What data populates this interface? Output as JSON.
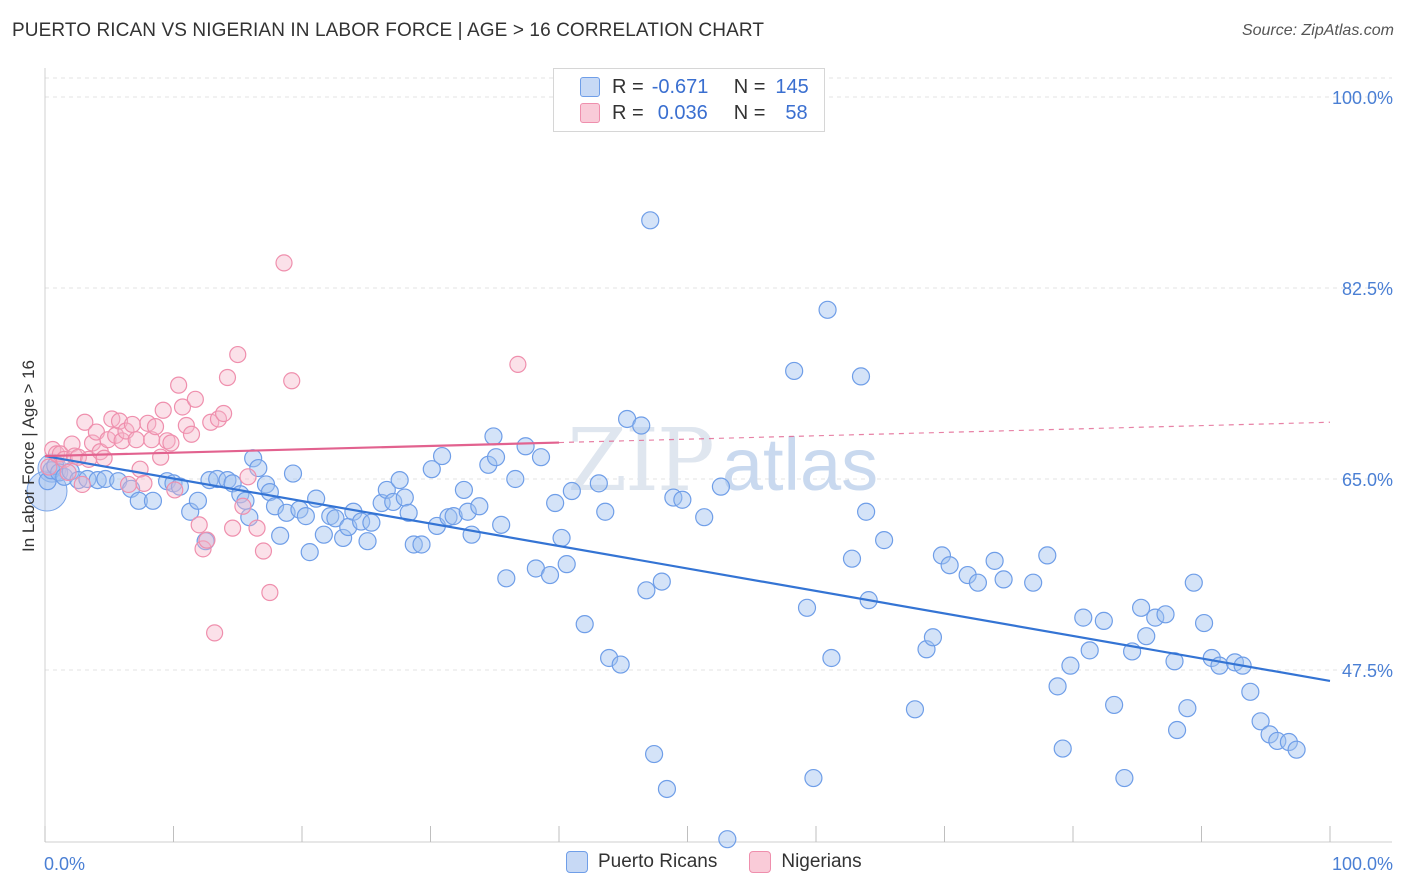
{
  "header": {
    "title": "PUERTO RICAN VS NIGERIAN IN LABOR FORCE | AGE > 16 CORRELATION CHART",
    "source": "Source: ZipAtlas.com"
  },
  "legend": {
    "rows": [
      {
        "r_label": "R =",
        "r_value": "-0.671",
        "n_label": "N =",
        "n_value": "145"
      },
      {
        "r_label": "R =",
        "r_value": "0.036",
        "n_label": "N =",
        "n_value": "58"
      }
    ]
  },
  "bottom_legend": {
    "items": [
      {
        "label": "Puerto Ricans"
      },
      {
        "label": "Nigerians"
      }
    ]
  },
  "watermark": {
    "zip": "ZIP",
    "atlas": "atlas"
  },
  "chart_data": {
    "type": "scatter",
    "title": "PUERTO RICAN VS NIGERIAN IN LABOR FORCE | AGE > 16 CORRELATION CHART",
    "ylabel": "In Labor Force | Age > 16",
    "xlabel": "",
    "x_tick_labels": [
      "0.0%",
      "100.0%"
    ],
    "y_tick_labels": [
      "100.0%",
      "82.5%",
      "65.0%",
      "47.5%"
    ],
    "y_ticks": [
      100.0,
      82.5,
      65.0,
      47.5
    ],
    "xlim": [
      0,
      100
    ],
    "ylim": [
      30,
      102
    ],
    "grid": true,
    "legend_position": "top-center",
    "colors": {
      "puerto_ricans": "#6f9ee8",
      "nigerians": "#ef8fad",
      "pr_line": "#3474d4",
      "ng_line": "#e2628f"
    },
    "series": [
      {
        "name": "Puerto Ricans",
        "r": -0.671,
        "n": 145,
        "trend": {
          "x": [
            0,
            100
          ],
          "y": [
            67.1,
            46.5
          ]
        },
        "points": [
          [
            0.2,
            64.8
          ],
          [
            0.5,
            65.8
          ],
          [
            0.8,
            66.2
          ],
          [
            1.1,
            65.6
          ],
          [
            1.5,
            65.2
          ],
          [
            2.0,
            65.7
          ],
          [
            2.6,
            64.9
          ],
          [
            3.3,
            65.0
          ],
          [
            4.1,
            64.9
          ],
          [
            4.7,
            65.0
          ],
          [
            5.7,
            64.8
          ],
          [
            6.7,
            64.1
          ],
          [
            7.3,
            63.0
          ],
          [
            8.4,
            63.0
          ],
          [
            9.5,
            64.8
          ],
          [
            10.0,
            64.6
          ],
          [
            10.5,
            64.3
          ],
          [
            11.3,
            62.0
          ],
          [
            11.9,
            63.0
          ],
          [
            12.5,
            59.3
          ],
          [
            12.8,
            64.9
          ],
          [
            13.4,
            65.0
          ],
          [
            14.2,
            64.9
          ],
          [
            14.6,
            64.6
          ],
          [
            15.2,
            63.6
          ],
          [
            15.6,
            63.0
          ],
          [
            15.9,
            61.5
          ],
          [
            16.2,
            66.9
          ],
          [
            16.6,
            66.0
          ],
          [
            17.2,
            64.5
          ],
          [
            17.5,
            63.8
          ],
          [
            17.9,
            62.5
          ],
          [
            18.3,
            59.8
          ],
          [
            18.8,
            61.9
          ],
          [
            19.3,
            65.5
          ],
          [
            19.8,
            62.2
          ],
          [
            20.3,
            61.6
          ],
          [
            20.6,
            58.3
          ],
          [
            21.1,
            63.2
          ],
          [
            21.7,
            59.9
          ],
          [
            22.2,
            61.6
          ],
          [
            22.6,
            61.4
          ],
          [
            23.2,
            59.6
          ],
          [
            23.6,
            60.6
          ],
          [
            24.0,
            62.0
          ],
          [
            24.6,
            61.1
          ],
          [
            25.1,
            59.3
          ],
          [
            25.4,
            61.0
          ],
          [
            26.2,
            62.8
          ],
          [
            26.6,
            64.0
          ],
          [
            27.1,
            62.9
          ],
          [
            27.6,
            64.9
          ],
          [
            28.0,
            63.3
          ],
          [
            28.3,
            61.9
          ],
          [
            28.7,
            59.0
          ],
          [
            29.3,
            59.0
          ],
          [
            30.1,
            65.9
          ],
          [
            30.5,
            60.7
          ],
          [
            30.9,
            67.1
          ],
          [
            31.4,
            61.5
          ],
          [
            31.8,
            61.6
          ],
          [
            32.6,
            64.0
          ],
          [
            32.9,
            62.0
          ],
          [
            33.2,
            59.9
          ],
          [
            33.8,
            62.5
          ],
          [
            34.5,
            66.3
          ],
          [
            34.9,
            68.9
          ],
          [
            35.1,
            67.0
          ],
          [
            35.5,
            60.8
          ],
          [
            35.9,
            55.9
          ],
          [
            36.6,
            65.0
          ],
          [
            37.4,
            68.0
          ],
          [
            38.2,
            56.8
          ],
          [
            38.6,
            67.0
          ],
          [
            39.3,
            56.2
          ],
          [
            39.7,
            62.8
          ],
          [
            40.2,
            59.6
          ],
          [
            40.6,
            57.2
          ],
          [
            41.0,
            63.9
          ],
          [
            42.0,
            51.7
          ],
          [
            43.1,
            64.6
          ],
          [
            43.6,
            62.0
          ],
          [
            43.9,
            48.6
          ],
          [
            44.8,
            48.0
          ],
          [
            45.3,
            70.5
          ],
          [
            46.4,
            69.9
          ],
          [
            46.8,
            54.8
          ],
          [
            47.1,
            88.7
          ],
          [
            47.4,
            39.8
          ],
          [
            48.0,
            55.6
          ],
          [
            48.4,
            36.6
          ],
          [
            48.9,
            63.3
          ],
          [
            49.6,
            63.1
          ],
          [
            51.3,
            61.5
          ],
          [
            52.6,
            64.3
          ],
          [
            53.1,
            32.0
          ],
          [
            58.3,
            74.9
          ],
          [
            59.3,
            53.2
          ],
          [
            59.8,
            37.6
          ],
          [
            60.9,
            80.5
          ],
          [
            61.2,
            48.6
          ],
          [
            62.8,
            57.7
          ],
          [
            63.5,
            74.4
          ],
          [
            63.9,
            62.0
          ],
          [
            64.1,
            53.9
          ],
          [
            65.3,
            59.4
          ],
          [
            67.7,
            43.9
          ],
          [
            68.6,
            49.4
          ],
          [
            69.1,
            50.5
          ],
          [
            69.8,
            58.0
          ],
          [
            70.4,
            57.1
          ],
          [
            71.8,
            56.2
          ],
          [
            72.6,
            55.5
          ],
          [
            73.9,
            57.5
          ],
          [
            74.6,
            55.8
          ],
          [
            76.9,
            55.5
          ],
          [
            78.0,
            58.0
          ],
          [
            78.8,
            46.0
          ],
          [
            79.2,
            40.3
          ],
          [
            79.8,
            47.9
          ],
          [
            80.8,
            52.3
          ],
          [
            81.3,
            49.3
          ],
          [
            82.4,
            52.0
          ],
          [
            83.2,
            44.3
          ],
          [
            84.0,
            37.6
          ],
          [
            84.6,
            49.2
          ],
          [
            85.3,
            53.2
          ],
          [
            85.7,
            50.6
          ],
          [
            86.4,
            52.3
          ],
          [
            87.2,
            52.6
          ],
          [
            87.9,
            48.3
          ],
          [
            88.1,
            42.0
          ],
          [
            88.9,
            44.0
          ],
          [
            89.4,
            55.5
          ],
          [
            90.2,
            51.8
          ],
          [
            90.8,
            48.6
          ],
          [
            91.4,
            47.9
          ],
          [
            92.6,
            48.2
          ],
          [
            93.2,
            47.9
          ],
          [
            93.8,
            45.5
          ],
          [
            94.6,
            42.8
          ],
          [
            95.3,
            41.6
          ],
          [
            95.9,
            41.0
          ],
          [
            96.8,
            40.9
          ],
          [
            97.4,
            40.2
          ]
        ]
      },
      {
        "name": "Nigerians",
        "r": 0.036,
        "n": 58,
        "trend": {
          "x": [
            0,
            100
          ],
          "y": [
            67.1,
            70.2
          ]
        },
        "trend_solid_until_x": 40,
        "points": [
          [
            0.3,
            66.1
          ],
          [
            0.6,
            67.7
          ],
          [
            0.9,
            67.3
          ],
          [
            1.2,
            67.3
          ],
          [
            1.5,
            66.8
          ],
          [
            1.8,
            65.6
          ],
          [
            2.1,
            68.2
          ],
          [
            2.3,
            67.1
          ],
          [
            2.6,
            67.0
          ],
          [
            2.9,
            64.5
          ],
          [
            3.1,
            70.2
          ],
          [
            3.4,
            66.8
          ],
          [
            3.7,
            68.3
          ],
          [
            4.0,
            69.3
          ],
          [
            4.3,
            67.5
          ],
          [
            4.6,
            66.9
          ],
          [
            4.9,
            68.6
          ],
          [
            5.2,
            70.5
          ],
          [
            5.5,
            69.0
          ],
          [
            5.8,
            70.3
          ],
          [
            6.0,
            68.5
          ],
          [
            6.3,
            69.4
          ],
          [
            6.5,
            64.5
          ],
          [
            6.8,
            70.0
          ],
          [
            7.1,
            68.6
          ],
          [
            7.4,
            65.9
          ],
          [
            7.7,
            64.6
          ],
          [
            8.0,
            70.1
          ],
          [
            8.3,
            68.6
          ],
          [
            8.6,
            69.8
          ],
          [
            9.0,
            67.0
          ],
          [
            9.2,
            71.3
          ],
          [
            9.5,
            68.5
          ],
          [
            9.8,
            68.3
          ],
          [
            10.1,
            64.0
          ],
          [
            10.4,
            73.6
          ],
          [
            10.7,
            71.6
          ],
          [
            11.0,
            69.9
          ],
          [
            11.4,
            69.1
          ],
          [
            11.7,
            72.3
          ],
          [
            12.0,
            60.8
          ],
          [
            12.3,
            58.6
          ],
          [
            12.6,
            59.4
          ],
          [
            12.9,
            70.2
          ],
          [
            13.2,
            50.9
          ],
          [
            13.5,
            70.5
          ],
          [
            13.9,
            71.0
          ],
          [
            14.2,
            74.3
          ],
          [
            14.6,
            60.5
          ],
          [
            15.0,
            76.4
          ],
          [
            15.4,
            62.5
          ],
          [
            15.8,
            65.2
          ],
          [
            16.5,
            60.5
          ],
          [
            17.0,
            58.4
          ],
          [
            17.5,
            54.6
          ],
          [
            18.6,
            84.8
          ],
          [
            19.2,
            74.0
          ],
          [
            36.8,
            75.5
          ]
        ]
      }
    ]
  }
}
